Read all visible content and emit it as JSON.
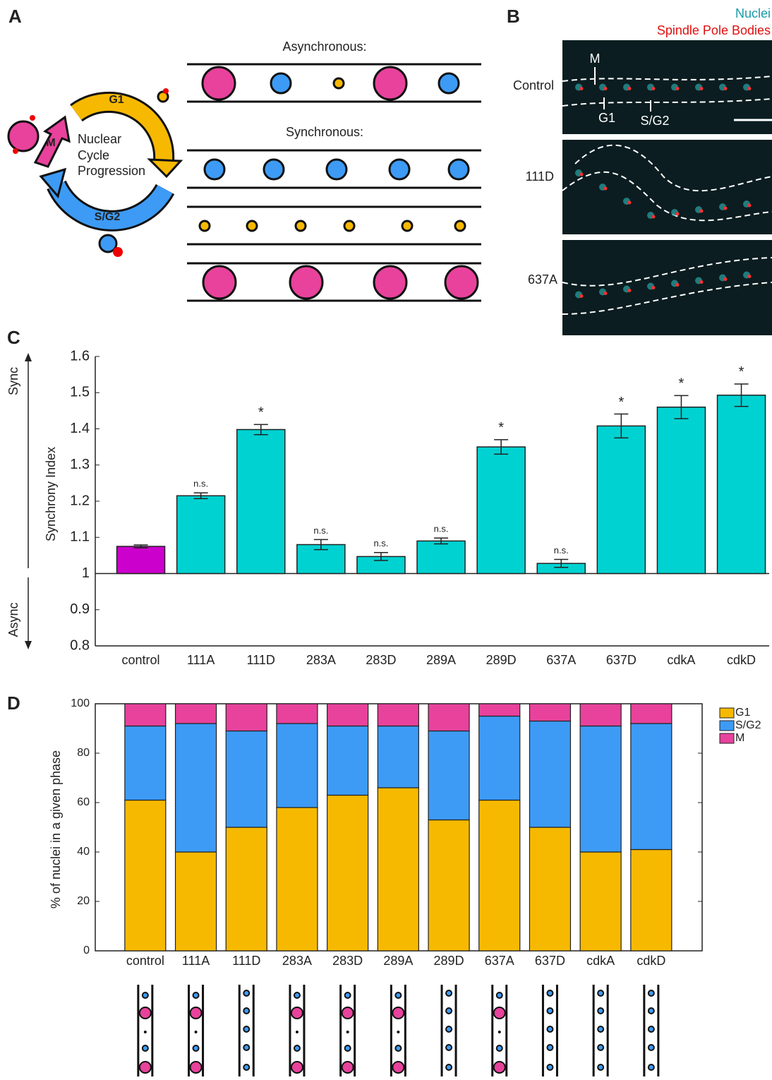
{
  "figure": {
    "panel_labels": [
      "A",
      "B",
      "C",
      "D"
    ],
    "panel_a": {
      "asynchronous": "Asynchronous:",
      "synchronous": "Synchronous:",
      "g1": "G1",
      "m": "M",
      "sg2": "S/G2",
      "center": [
        "Nuclear",
        "Cycle",
        "Progression"
      ]
    },
    "panel_b": {
      "legend": [
        "Nuclei",
        "Spindle Pole Bodies"
      ],
      "rows": [
        "Control",
        "111D",
        "637A"
      ],
      "markers": [
        "M",
        "G1",
        "S/G2"
      ]
    }
  },
  "chart_data": [
    {
      "type": "bar",
      "ylabel": "Synchrony Index",
      "side_labels": [
        "Sync",
        "Async"
      ],
      "categories": [
        "control",
        "111A",
        "111D",
        "283A",
        "283D",
        "289A",
        "289D",
        "637A",
        "637D",
        "cdkA",
        "cdkD"
      ],
      "values": [
        1.075,
        1.215,
        1.398,
        1.08,
        1.047,
        1.09,
        1.35,
        1.028,
        1.408,
        1.46,
        1.493
      ],
      "errors": [
        0.004,
        0.008,
        0.014,
        0.014,
        0.011,
        0.008,
        0.02,
        0.011,
        0.033,
        0.032,
        0.031
      ],
      "annotations": [
        null,
        "n.s.",
        "*",
        "n.s.",
        "n.s.",
        "n.s.",
        "*",
        "n.s.",
        "*",
        "*",
        "*"
      ],
      "colors": [
        "#cc00cc",
        "#00d2d2",
        "#00d2d2",
        "#00d2d2",
        "#00d2d2",
        "#00d2d2",
        "#00d2d2",
        "#00d2d2",
        "#00d2d2",
        "#00d2d2",
        "#00d2d2"
      ],
      "baseline": 1,
      "ylim": [
        0.8,
        1.6
      ],
      "yticks": [
        0.8,
        0.9,
        1,
        1.1,
        1.2,
        1.3,
        1.4,
        1.5,
        1.6
      ]
    },
    {
      "type": "stacked_bar",
      "ylabel": "% of nuclei in a given phase",
      "categories": [
        "control",
        "111A",
        "111D",
        "283A",
        "283D",
        "289A",
        "289D",
        "637A",
        "637D",
        "cdkA",
        "cdkD"
      ],
      "series": [
        {
          "name": "G1",
          "color": "#f7b900",
          "values": [
            61,
            40,
            50,
            58,
            63,
            66,
            53,
            61,
            50,
            40,
            41
          ]
        },
        {
          "name": "S/G2",
          "color": "#3d9bf5",
          "values": [
            30,
            52,
            39,
            34,
            28,
            25,
            36,
            34,
            43,
            51,
            51
          ]
        },
        {
          "name": "M",
          "color": "#e8429c",
          "values": [
            9,
            8,
            11,
            8,
            9,
            9,
            11,
            5,
            7,
            9,
            8
          ]
        }
      ],
      "ylim": [
        0,
        100
      ],
      "yticks": [
        0,
        20,
        40,
        60,
        80,
        100
      ],
      "legend": "right"
    }
  ]
}
